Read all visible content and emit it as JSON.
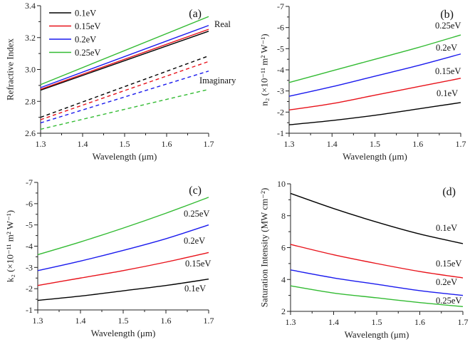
{
  "chart_data": [
    {
      "type": "line",
      "panel_label": "(a)",
      "xlabel": "Wavelength (μm)",
      "ylabel": "Refractive Index",
      "xlim": [
        1.3,
        1.7
      ],
      "ylim": [
        2.6,
        3.4
      ],
      "xticks": [
        1.3,
        1.4,
        1.5,
        1.6,
        1.7
      ],
      "yticks": [
        2.6,
        2.8,
        3.0,
        3.2,
        3.4
      ],
      "ytick_labels": [
        "2.6",
        "2.8",
        "3.0",
        "3.2",
        "3.4"
      ],
      "x": [
        1.3,
        1.7
      ],
      "legend": {
        "placement": "top-left",
        "entries": [
          "0.1eV",
          "0.15eV",
          "0.2eV",
          "0.25eV"
        ]
      },
      "annotations": [
        "Real",
        "Imaginary"
      ],
      "series": [
        {
          "name": "0.1eV",
          "part": "Real",
          "color": "#000000",
          "style": "solid",
          "values": [
            2.87,
            3.24
          ]
        },
        {
          "name": "0.15eV",
          "part": "Real",
          "color": "#e8121a",
          "style": "solid",
          "values": [
            2.876,
            3.252
          ]
        },
        {
          "name": "0.2eV",
          "part": "Real",
          "color": "#1a1aee",
          "style": "solid",
          "values": [
            2.886,
            3.276
          ]
        },
        {
          "name": "0.25eV",
          "part": "Real",
          "color": "#33bb33",
          "style": "solid",
          "values": [
            2.905,
            3.332
          ]
        },
        {
          "name": "0.1eV",
          "part": "Imaginary",
          "color": "#000000",
          "style": "dashed",
          "values": [
            2.7,
            3.085
          ]
        },
        {
          "name": "0.15eV",
          "part": "Imaginary",
          "color": "#e8121a",
          "style": "dashed",
          "values": [
            2.685,
            3.05
          ]
        },
        {
          "name": "0.2eV",
          "part": "Imaginary",
          "color": "#1a1aee",
          "style": "dashed",
          "values": [
            2.665,
            2.99
          ]
        },
        {
          "name": "0.25eV",
          "part": "Imaginary",
          "color": "#33bb33",
          "style": "dashed",
          "values": [
            2.625,
            2.875
          ]
        }
      ]
    },
    {
      "type": "line",
      "panel_label": "(b)",
      "xlabel": "Wavelength (μm)",
      "ylabel": "n₂ (×10⁻¹¹ m² W⁻¹)",
      "xlim": [
        1.3,
        1.7
      ],
      "ylim": [
        -1,
        -7
      ],
      "xticks": [
        1.3,
        1.4,
        1.5,
        1.6,
        1.7
      ],
      "yticks": [
        -1,
        -2,
        -3,
        -4,
        -5,
        -6,
        -7
      ],
      "ytick_labels": [
        "-1",
        "-2",
        "-3",
        "-4",
        "-5",
        "-6",
        "-7"
      ],
      "x": [
        1.3,
        1.4,
        1.5,
        1.6,
        1.7
      ],
      "series": [
        {
          "name": "0.1eV",
          "color": "#000000",
          "style": "solid",
          "values": [
            -1.4,
            -1.6,
            -1.85,
            -2.15,
            -2.45
          ]
        },
        {
          "name": "0.15eV",
          "color": "#e8121a",
          "style": "solid",
          "values": [
            -2.1,
            -2.4,
            -2.8,
            -3.2,
            -3.6
          ]
        },
        {
          "name": "0.2eV",
          "color": "#1a1aee",
          "style": "solid",
          "values": [
            -2.75,
            -3.2,
            -3.7,
            -4.2,
            -4.75
          ]
        },
        {
          "name": "0.25eV",
          "color": "#33bb33",
          "style": "solid",
          "values": [
            -3.4,
            -3.95,
            -4.5,
            -5.05,
            -5.65
          ]
        }
      ]
    },
    {
      "type": "line",
      "panel_label": "(c)",
      "xlabel": "Wavelength (μm)",
      "ylabel": "k₂ (×10⁻¹¹ m² W⁻¹)",
      "xlim": [
        1.3,
        1.7
      ],
      "ylim": [
        -1,
        -7
      ],
      "xticks": [
        1.3,
        1.4,
        1.5,
        1.6,
        1.7
      ],
      "yticks": [
        -1,
        -2,
        -3,
        -4,
        -5,
        -6,
        -7
      ],
      "ytick_labels": [
        "-1",
        "-2",
        "-3",
        "-4",
        "-5",
        "-6",
        "-7"
      ],
      "x": [
        1.3,
        1.4,
        1.5,
        1.6,
        1.7
      ],
      "series": [
        {
          "name": "0.1eV",
          "color": "#000000",
          "style": "solid",
          "values": [
            -1.45,
            -1.65,
            -1.9,
            -2.15,
            -2.45
          ]
        },
        {
          "name": "0.15eV",
          "color": "#e8121a",
          "style": "solid",
          "values": [
            -2.15,
            -2.5,
            -2.85,
            -3.25,
            -3.7
          ]
        },
        {
          "name": "0.2eV",
          "color": "#1a1aee",
          "style": "solid",
          "values": [
            -2.85,
            -3.3,
            -3.8,
            -4.35,
            -5.0
          ]
        },
        {
          "name": "0.25eV",
          "color": "#33bb33",
          "style": "solid",
          "values": [
            -3.6,
            -4.2,
            -4.85,
            -5.55,
            -6.3
          ]
        }
      ]
    },
    {
      "type": "line",
      "panel_label": "(d)",
      "xlabel": "Wavelength (μm)",
      "ylabel": "Saturation Intensity (MW cm⁻²)",
      "xlim": [
        1.3,
        1.7
      ],
      "ylim": [
        2,
        10
      ],
      "xticks": [
        1.3,
        1.4,
        1.5,
        1.6,
        1.7
      ],
      "yticks": [
        2,
        4,
        6,
        8,
        10
      ],
      "ytick_labels": [
        "2",
        "4",
        "6",
        "8",
        "10"
      ],
      "x": [
        1.3,
        1.4,
        1.5,
        1.6,
        1.7
      ],
      "series": [
        {
          "name": "0.1eV",
          "color": "#000000",
          "style": "solid",
          "values": [
            9.4,
            8.45,
            7.6,
            6.85,
            6.25
          ]
        },
        {
          "name": "0.15eV",
          "color": "#e8121a",
          "style": "solid",
          "values": [
            6.2,
            5.55,
            5.0,
            4.5,
            4.1
          ]
        },
        {
          "name": "0.2eV",
          "color": "#1a1aee",
          "style": "solid",
          "values": [
            4.6,
            4.1,
            3.7,
            3.3,
            3.0
          ]
        },
        {
          "name": "0.25eV",
          "color": "#33bb33",
          "style": "solid",
          "values": [
            3.6,
            3.15,
            2.85,
            2.55,
            2.3
          ]
        }
      ]
    }
  ]
}
